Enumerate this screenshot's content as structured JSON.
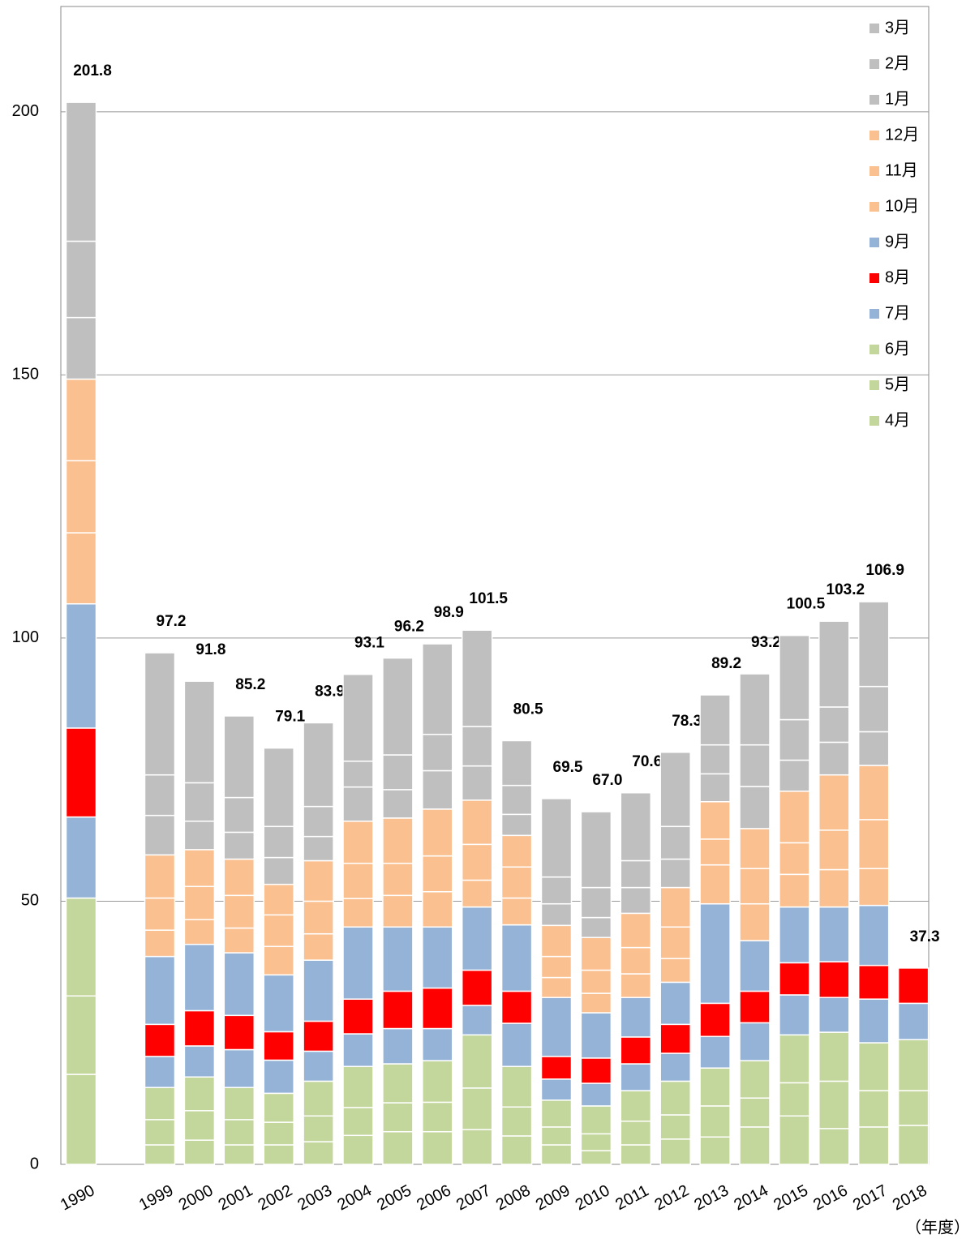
{
  "chart_data": {
    "type": "stacked_bar",
    "categories": [
      "1990",
      "1999",
      "2000",
      "2001",
      "2002",
      "2003",
      "2004",
      "2005",
      "2006",
      "2007",
      "2008",
      "2009",
      "2010",
      "2011",
      "2012",
      "2013",
      "2014",
      "2015",
      "2016",
      "2017",
      "2018"
    ],
    "series": [
      {
        "name": "4月",
        "color": "#c3d69b",
        "values": [
          17.1,
          3.7,
          4.6,
          3.7,
          3.7,
          4.3,
          5.5,
          6.2,
          6.2,
          6.6,
          5.4,
          3.7,
          2.6,
          3.7,
          4.8,
          5.2,
          7.1,
          9.2,
          6.8,
          7.1,
          7.4
        ]
      },
      {
        "name": "5月",
        "color": "#c3d69b",
        "values": [
          14.9,
          4.8,
          5.6,
          4.8,
          4.3,
          4.9,
          5.3,
          5.5,
          5.6,
          7.9,
          5.5,
          3.4,
          3.2,
          4.5,
          4.6,
          5.9,
          5.5,
          6.3,
          9.0,
          6.9,
          6.6
        ]
      },
      {
        "name": "6月",
        "color": "#c3d69b",
        "values": [
          18.6,
          6.1,
          6.4,
          6.1,
          5.5,
          6.6,
          7.8,
          7.4,
          7.9,
          10.1,
          7.7,
          5.1,
          5.3,
          5.8,
          6.4,
          7.2,
          7.1,
          9.1,
          9.3,
          9.1,
          9.7
        ]
      },
      {
        "name": "7月",
        "color": "#95b3d7",
        "values": [
          15.4,
          5.9,
          5.9,
          7.2,
          6.3,
          5.7,
          6.2,
          6.7,
          6.1,
          5.6,
          8.2,
          4.0,
          4.3,
          5.1,
          5.3,
          6.0,
          7.2,
          7.6,
          6.6,
          8.3,
          6.9
        ]
      },
      {
        "name": "8月",
        "color": "#ff0000",
        "values": [
          16.9,
          6.1,
          6.7,
          6.5,
          5.4,
          5.7,
          6.6,
          7.1,
          7.7,
          6.7,
          6.1,
          4.3,
          4.8,
          5.1,
          5.5,
          6.3,
          6.0,
          6.1,
          6.8,
          6.4,
          6.7
        ]
      },
      {
        "name": "9月",
        "color": "#95b3d7",
        "values": [
          23.6,
          12.9,
          12.6,
          11.9,
          10.8,
          11.6,
          13.7,
          12.2,
          11.6,
          12.0,
          12.6,
          11.2,
          8.6,
          7.5,
          8.0,
          18.9,
          9.6,
          10.6,
          10.4,
          11.4,
          null
        ]
      },
      {
        "name": "10月",
        "color": "#fac090",
        "values": [
          13.5,
          5.0,
          4.7,
          4.7,
          5.4,
          5.0,
          5.4,
          6.0,
          6.7,
          5.1,
          5.1,
          3.8,
          3.7,
          4.5,
          4.5,
          7.4,
          7.0,
          6.2,
          7.1,
          7.0,
          null
        ]
      },
      {
        "name": "11月",
        "color": "#fac090",
        "values": [
          13.7,
          6.1,
          6.3,
          6.2,
          6.0,
          6.2,
          6.7,
          6.1,
          6.8,
          6.8,
          5.9,
          4.0,
          4.4,
          5.0,
          6.0,
          4.9,
          6.7,
          6.0,
          7.5,
          9.3,
          null
        ]
      },
      {
        "name": "12月",
        "color": "#fac090",
        "values": [
          15.5,
          8.2,
          7.0,
          6.9,
          5.8,
          7.7,
          8.0,
          8.6,
          8.9,
          8.4,
          6.0,
          5.9,
          6.2,
          6.5,
          7.5,
          7.1,
          7.6,
          9.8,
          10.5,
          10.3,
          null
        ]
      },
      {
        "name": "1月",
        "color": "#bfbfbf",
        "values": [
          11.7,
          7.5,
          5.4,
          5.1,
          5.1,
          4.6,
          6.5,
          5.4,
          7.3,
          6.5,
          4.0,
          4.1,
          3.8,
          4.9,
          5.4,
          5.3,
          8.0,
          5.9,
          6.2,
          6.4,
          null
        ]
      },
      {
        "name": "2月",
        "color": "#bfbfbf",
        "values": [
          14.5,
          7.7,
          7.3,
          6.6,
          5.9,
          5.7,
          4.9,
          6.6,
          6.9,
          7.5,
          5.5,
          5.1,
          5.7,
          5.1,
          6.2,
          5.5,
          7.9,
          7.7,
          6.7,
          8.6,
          null
        ]
      },
      {
        "name": "3月",
        "color": "#bfbfbf",
        "values": [
          26.4,
          23.2,
          19.3,
          15.5,
          14.9,
          15.9,
          16.5,
          18.4,
          17.2,
          18.3,
          8.5,
          14.9,
          14.4,
          12.9,
          14.1,
          9.5,
          13.5,
          16.0,
          16.3,
          16.1,
          null
        ]
      }
    ],
    "totals": [
      201.8,
      97.2,
      91.8,
      85.2,
      79.1,
      83.9,
      93.1,
      96.2,
      98.9,
      101.5,
      80.5,
      69.5,
      67.0,
      70.6,
      78.3,
      89.2,
      93.2,
      100.5,
      103.2,
      106.9,
      37.3
    ],
    "total_labels": [
      "201.8",
      "97.2",
      "91.8",
      "85.2",
      "79.1",
      "83.9",
      "93.1",
      "96.2",
      "98.9",
      "101.5",
      "80.5",
      "69.5",
      "67.0",
      "70.6",
      "78.3",
      "89.2",
      "93.2",
      "100.5",
      "103.2",
      "106.9",
      "37.3"
    ],
    "x_unit_label": "（年度）",
    "ylim": [
      0,
      220
    ],
    "yticks": [
      0,
      50,
      100,
      150,
      200
    ],
    "grid": true,
    "legend": "top-right"
  }
}
